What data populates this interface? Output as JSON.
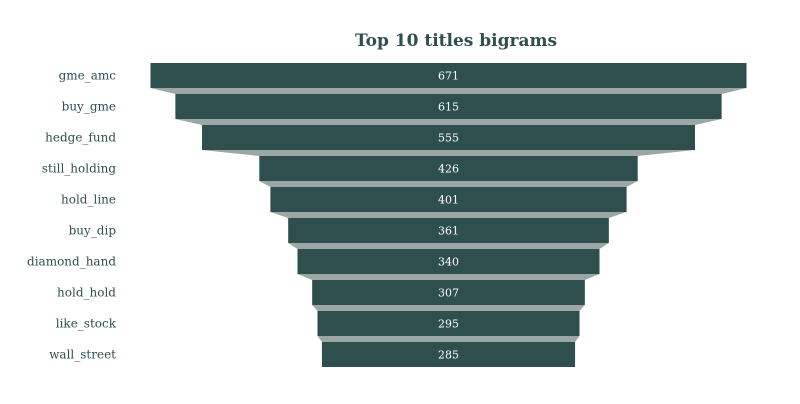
{
  "chart_data": {
    "type": "funnel",
    "title": "Top 10 titles bigrams",
    "categories": [
      "gme_amc",
      "buy_gme",
      "hedge_fund",
      "still_holding",
      "hold_line",
      "buy_dip",
      "diamond_hand",
      "hold_hold",
      "like_stock",
      "wall_street"
    ],
    "values": [
      671,
      615,
      555,
      426,
      401,
      361,
      340,
      307,
      295,
      285
    ],
    "colors": {
      "bar": "#2f4f4f",
      "connector": "#9aa7a4",
      "value_text": "#ffffff",
      "label_text": "#2f4f4f",
      "title_text": "#2f4f4f"
    }
  }
}
